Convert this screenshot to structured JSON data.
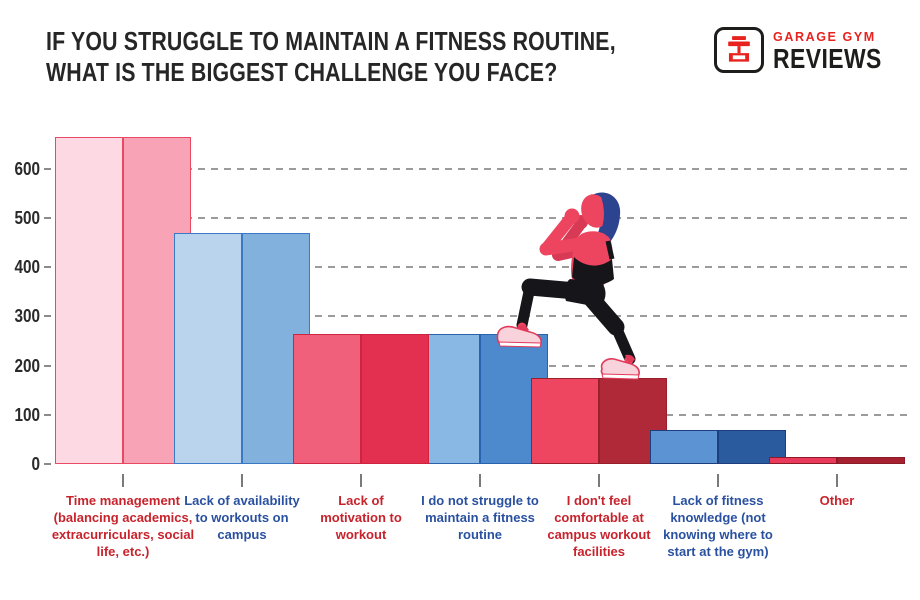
{
  "page": {
    "background": "#ffffff"
  },
  "title": {
    "line1": "IF YOU STRUGGLE TO MAINTAIN A FITNESS ROUTINE,",
    "line2": "WHAT IS THE BIGGEST CHALLENGE YOU FACE?",
    "color": "#262626"
  },
  "logo": {
    "brand_line1": "GARAGE GYM",
    "brand_line2": "REVIEWS",
    "red": "#e8231f",
    "dark": "#1d1d1b",
    "icon": "dumbbell-icon"
  },
  "chart_data": {
    "type": "bar",
    "title": "If you struggle to maintain a fitness routine, what is the biggest challenge you face?",
    "categories": [
      "Time management (balancing academics, extracurriculars, social life, etc.)",
      "Lack of availability to workouts on campus",
      "Lack of motivation to workout",
      "I do not struggle to maintain a fitness routine",
      "I don't feel comfortable at campus workout facilities",
      "Lack of fitness knowledge (not knowing where to start at the gym)",
      "Other"
    ],
    "values": [
      665,
      470,
      265,
      265,
      175,
      70,
      15
    ],
    "xlabel": "",
    "ylabel": "",
    "ylim": [
      0,
      680
    ],
    "yticks": [
      0,
      100,
      200,
      300,
      400,
      500,
      600
    ],
    "grid": "horizontal-dashed",
    "legend": "none",
    "gridline_color": "#9b9b9b",
    "axis_label_color": "#2a2a2a",
    "bar_styles": [
      {
        "light": "#fdd9e3",
        "dark": "#f9a4b6",
        "border": "#e94a63"
      },
      {
        "light": "#b9d4ec",
        "dark": "#83b1de",
        "border": "#3c79c4"
      },
      {
        "light": "#f0607a",
        "dark": "#e43050",
        "border": "#cf2440"
      },
      {
        "light": "#89b8e4",
        "dark": "#4d89cd",
        "border": "#2b62ae"
      },
      {
        "light": "#ee4560",
        "dark": "#b02939",
        "border": "#991f2d"
      },
      {
        "light": "#5b93d3",
        "dark": "#2a5b9f",
        "border": "#1d3f7d"
      },
      {
        "light": "#ea3a5b",
        "dark": "#a52130",
        "border": "#8c1b28"
      }
    ],
    "label_colors": [
      "#c8232c",
      "#2a51a0",
      "#c8232c",
      "#2a51a0",
      "#c8232c",
      "#2a51a0",
      "#c8232c"
    ],
    "annotation": "Illustration of a woman doing a lunge climbing the bars like a staircase"
  }
}
